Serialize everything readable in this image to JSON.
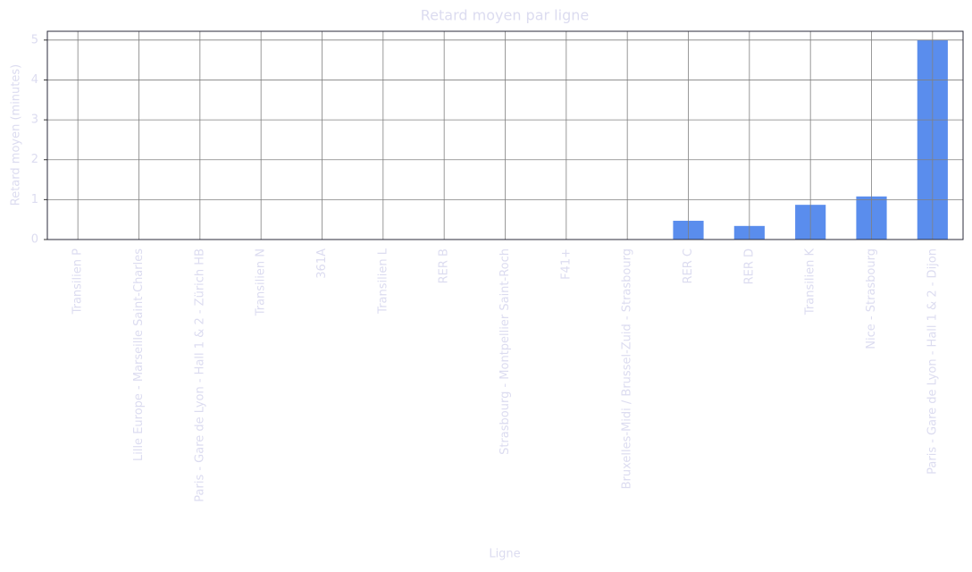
{
  "chart_data": {
    "type": "bar",
    "title": "Retard moyen par ligne",
    "x_label": "Ligne",
    "y_label": "Retard moyen (minutes)",
    "categories": [
      "Transilien P",
      "Lille Europe - Marseille Saint-Charles",
      "Paris - Gare de Lyon - Hall 1 & 2 - Zürich HB",
      "Transilien N",
      "361A",
      "Transilien L",
      "RER B",
      "Strasbourg - Montpellier Saint-Roch",
      "F41+",
      "Bruxelles-Midi / Brussel-Zuid - Strasbourg",
      "RER C",
      "RER D",
      "Transilien K",
      "Nice - Strasbourg",
      "Paris - Gare de Lyon - Hall 1 & 2 - Dijon"
    ],
    "values": [
      0,
      0,
      0,
      0,
      0,
      0,
      0,
      0,
      0,
      0,
      0.47,
      0.34,
      0.87,
      1.08,
      5.0
    ],
    "color": "#5a8ded",
    "ylim": [
      0,
      5.22
    ],
    "yticks": [
      0,
      1,
      2,
      3,
      4,
      5
    ],
    "grid": true
  }
}
